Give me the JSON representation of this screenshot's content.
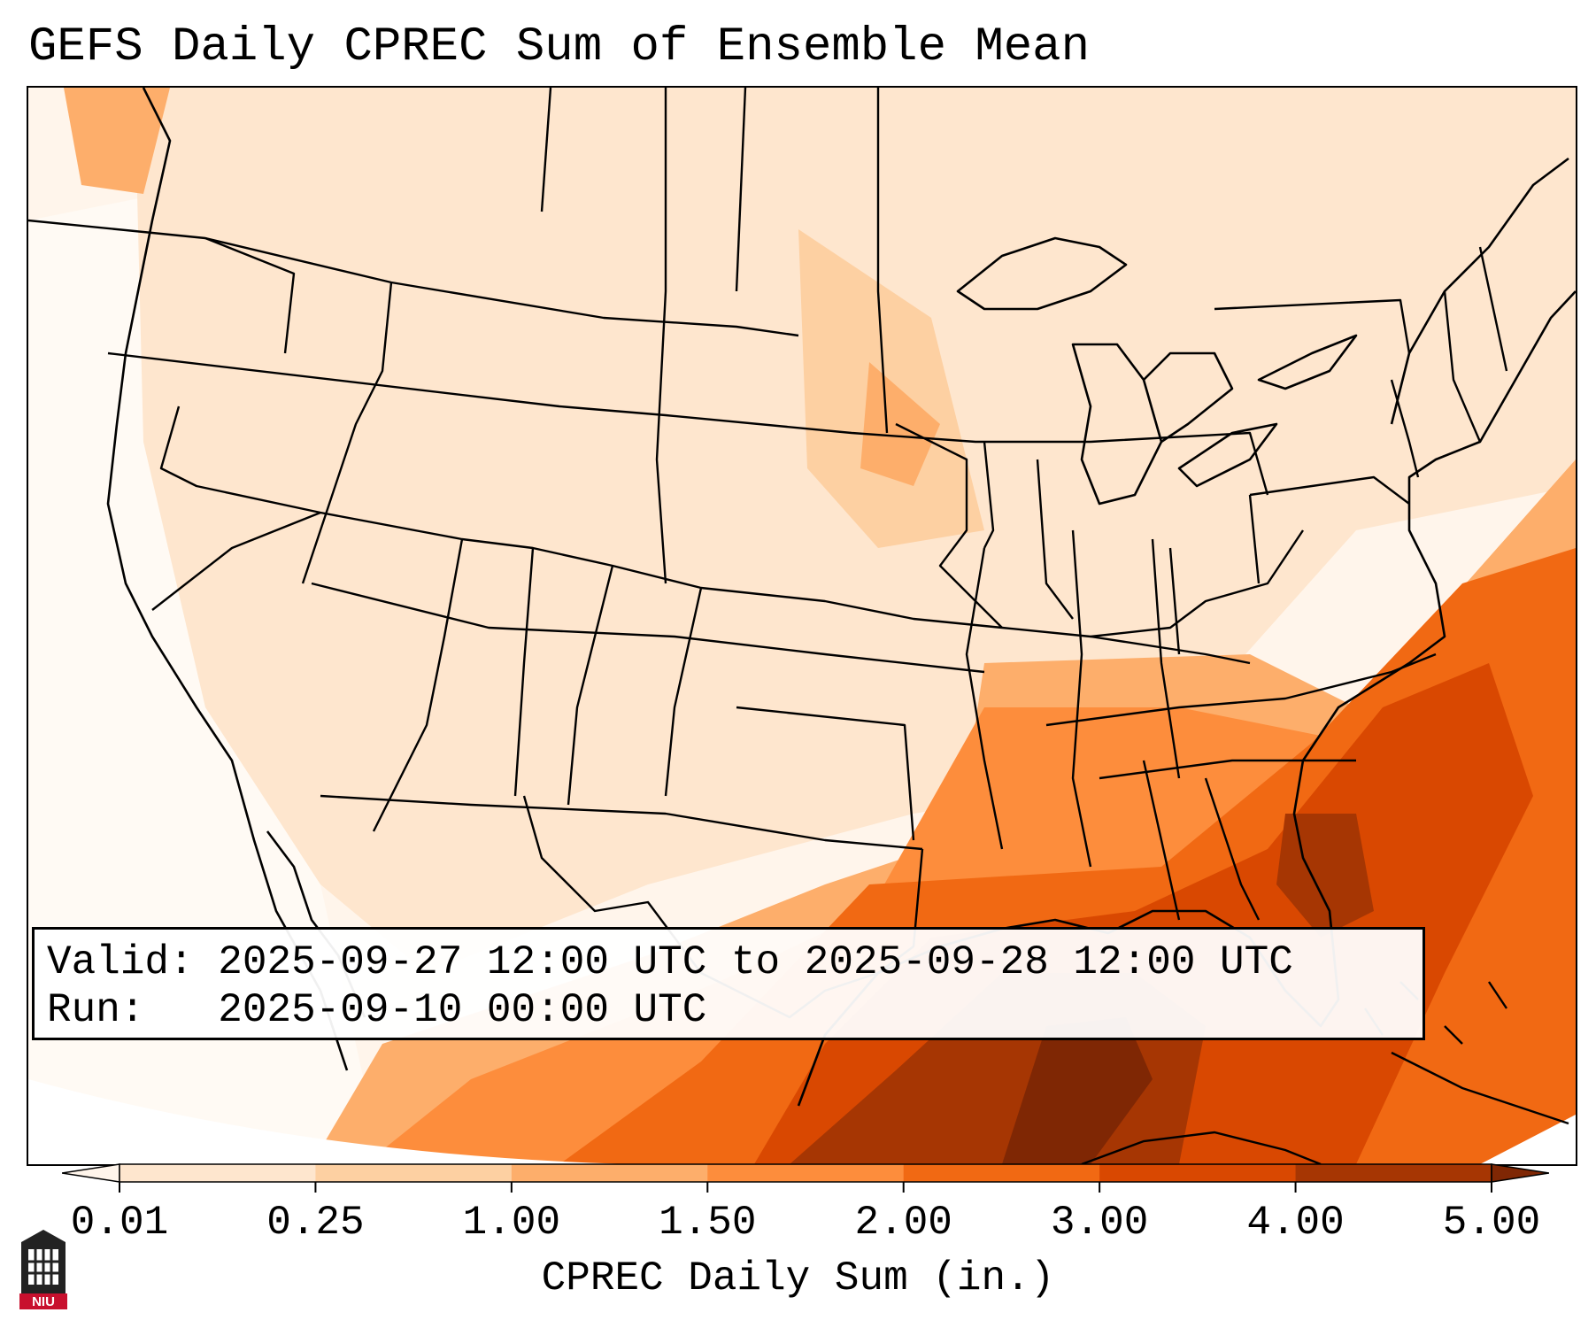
{
  "title": "GEFS Daily CPREC Sum of Ensemble Mean",
  "info": {
    "valid_label": "Valid:",
    "valid_value": "2025-09-27 12:00 UTC to 2025-09-28 12:00 UTC",
    "run_label": "Run:",
    "run_value": "2025-09-10 00:00 UTC"
  },
  "colorbar": {
    "label": "CPREC Daily Sum (in.)",
    "ticks": [
      "0.01",
      "0.25",
      "1.00",
      "1.50",
      "2.00",
      "3.00",
      "4.00",
      "5.00"
    ],
    "colors": [
      "#fff5eb",
      "#fee6ce",
      "#fdd0a2",
      "#fdae6b",
      "#fd8d3c",
      "#f16913",
      "#d94801",
      "#a63603",
      "#7f2704"
    ]
  },
  "logo": {
    "text": "NIU"
  },
  "map": {
    "region": "Contiguous United States",
    "features": [
      "state-borders",
      "coastlines",
      "gulf-precip-max",
      "atlantic-precip-band"
    ]
  }
}
